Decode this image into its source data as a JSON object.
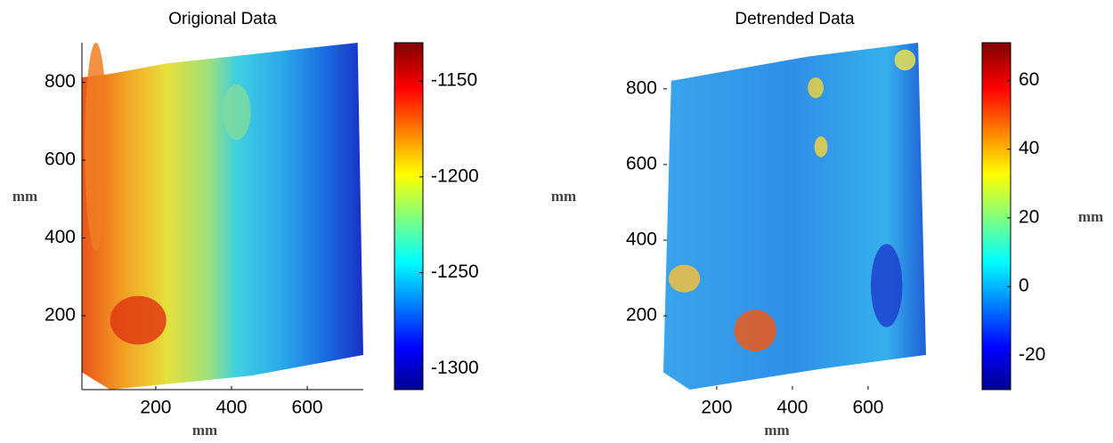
{
  "chart_data": [
    {
      "type": "heatmap",
      "title": "Origional Data",
      "xlabel": "mm",
      "ylabel": "mm",
      "xlim": [
        5,
        748
      ],
      "xticks": [
        200,
        400,
        600
      ],
      "ylim": [
        10,
        902
      ],
      "yticks": [
        200,
        400,
        600,
        800
      ],
      "axis_lines": true,
      "colormap": "jet",
      "clim": [
        -1311,
        -1130
      ],
      "cticks": [
        -1300,
        -1250,
        -1200,
        -1150
      ]
    },
    {
      "type": "heatmap",
      "title": "Detrended Data",
      "xlabel": "mm",
      "ylabel": "mm",
      "clabel": "mm",
      "xlim": [
        59,
        753
      ],
      "xticks": [
        200,
        400,
        600
      ],
      "ylim": [
        5,
        922
      ],
      "yticks": [
        200,
        400,
        600,
        800
      ],
      "axis_lines": false,
      "colormap": "jet",
      "clim": [
        -30,
        71
      ],
      "cticks": [
        -20,
        0,
        20,
        40,
        60
      ]
    }
  ]
}
